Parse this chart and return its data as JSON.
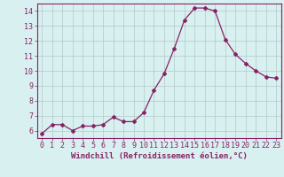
{
  "x": [
    0,
    1,
    2,
    3,
    4,
    5,
    6,
    7,
    8,
    9,
    10,
    11,
    12,
    13,
    14,
    15,
    16,
    17,
    18,
    19,
    20,
    21,
    22,
    23
  ],
  "y": [
    5.8,
    6.4,
    6.4,
    6.0,
    6.3,
    6.3,
    6.4,
    6.9,
    6.6,
    6.6,
    7.2,
    8.7,
    9.8,
    11.5,
    13.4,
    14.2,
    14.2,
    14.0,
    12.1,
    11.1,
    10.5,
    10.0,
    9.6,
    9.5
  ],
  "line_color": "#882266",
  "marker": "D",
  "marker_size": 2,
  "bg_color": "#d8f0f0",
  "grid_color": "#b0c8c8",
  "xlabel": "Windchill (Refroidissement éolien,°C)",
  "yticks": [
    6,
    7,
    8,
    9,
    10,
    11,
    12,
    13,
    14
  ],
  "xlim": [
    -0.5,
    23.5
  ],
  "ylim": [
    5.5,
    14.5
  ],
  "tick_fontsize": 6,
  "xlabel_fontsize": 6.5
}
